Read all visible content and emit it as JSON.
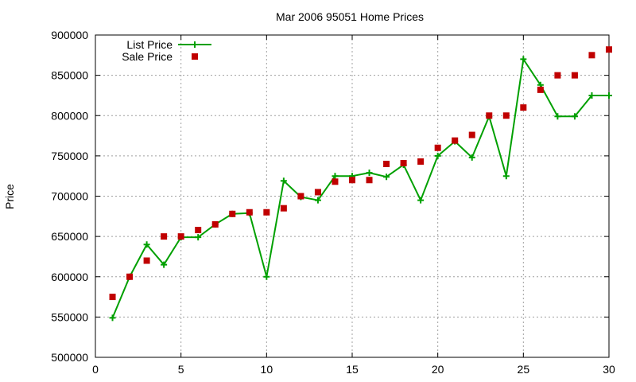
{
  "chart_data": {
    "type": "line",
    "title": "Mar 2006 95051 Home Prices",
    "xlabel": "",
    "ylabel": "Price",
    "xlim": [
      0,
      30
    ],
    "ylim": [
      500000,
      900000
    ],
    "x_ticks": [
      "0",
      "5",
      "10",
      "15",
      "20",
      "25",
      "30"
    ],
    "y_ticks": [
      "900000",
      "850000",
      "800000",
      "750000",
      "700000",
      "650000",
      "600000",
      "550000",
      "500000"
    ],
    "grid": true,
    "legend_position": "top-left",
    "series": [
      {
        "name": "List Price",
        "style": "line+cross",
        "color": "#00a000",
        "x": [
          1,
          2,
          3,
          4,
          5,
          6,
          7,
          8,
          9,
          10,
          11,
          12,
          13,
          14,
          15,
          16,
          17,
          18,
          19,
          20,
          21,
          22,
          23,
          24,
          25,
          26,
          27,
          28,
          29,
          30
        ],
        "values": [
          549000,
          600000,
          640000,
          615000,
          649000,
          649000,
          665000,
          678000,
          679000,
          600000,
          719000,
          699000,
          695000,
          725000,
          725000,
          729000,
          724000,
          739000,
          695000,
          750000,
          768000,
          748000,
          799000,
          725000,
          870000,
          838000,
          799000,
          799000,
          825000,
          825000
        ]
      },
      {
        "name": "Sale Price",
        "style": "square",
        "color": "#c00000",
        "x": [
          1,
          2,
          3,
          4,
          5,
          6,
          7,
          8,
          9,
          10,
          11,
          12,
          13,
          14,
          15,
          16,
          17,
          18,
          19,
          20,
          21,
          22,
          23,
          24,
          25,
          26,
          27,
          28,
          29,
          30
        ],
        "values": [
          575000,
          600000,
          620000,
          650000,
          650000,
          658000,
          665000,
          678000,
          680000,
          680000,
          685000,
          700000,
          705000,
          718000,
          720000,
          720000,
          740000,
          741000,
          743000,
          760000,
          769000,
          776000,
          800000,
          800000,
          810000,
          832000,
          850000,
          850000,
          875000,
          882000
        ]
      }
    ]
  }
}
